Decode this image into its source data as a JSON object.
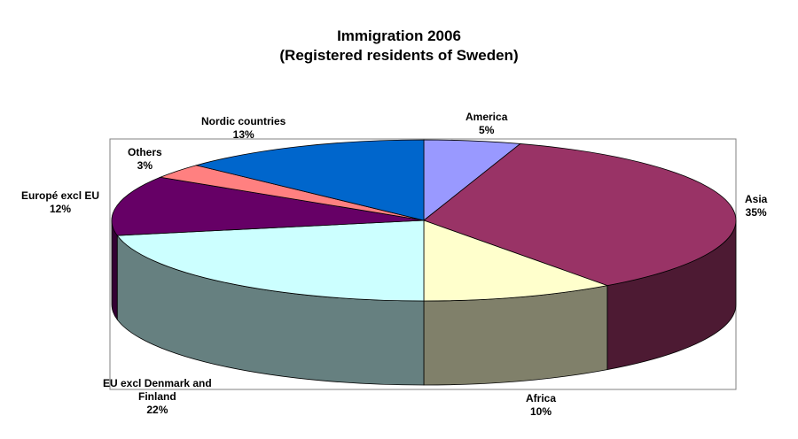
{
  "chart_data": {
    "type": "pie",
    "title": "Immigration 2006",
    "subtitle": "(Registered residents of Sweden)",
    "unit": "%",
    "slices": [
      {
        "label": "America",
        "value": 5,
        "value_label": "5%",
        "top_color": "#9999ff",
        "side_color": "#7a7acc"
      },
      {
        "label": "Asia",
        "value": 35,
        "value_label": "35%",
        "top_color": "#993366",
        "side_color": "#4d1a33"
      },
      {
        "label": "Africa",
        "value": 10,
        "value_label": "10%",
        "top_color": "#ffffcc",
        "side_color": "#80806a"
      },
      {
        "label": "EU excl Denmark and Finland",
        "label_lines": [
          "EU excl Denmark and",
          "Finland"
        ],
        "value": 22,
        "value_label": "22%",
        "top_color": "#ccffff",
        "side_color": "#668080"
      },
      {
        "label": "Europé excl EU",
        "value": 12,
        "value_label": "12%",
        "top_color": "#660066",
        "side_color": "#330033"
      },
      {
        "label": "Others",
        "value": 3,
        "value_label": "3%",
        "top_color": "#ff8080",
        "side_color": "#804040"
      },
      {
        "label": "Nordic countries",
        "value": 13,
        "value_label": "13%",
        "top_color": "#0066cc",
        "side_color": "#003366"
      }
    ],
    "start_angle": "12 o'clock",
    "direction": "clockwise",
    "style": "3d",
    "legend": "none"
  }
}
